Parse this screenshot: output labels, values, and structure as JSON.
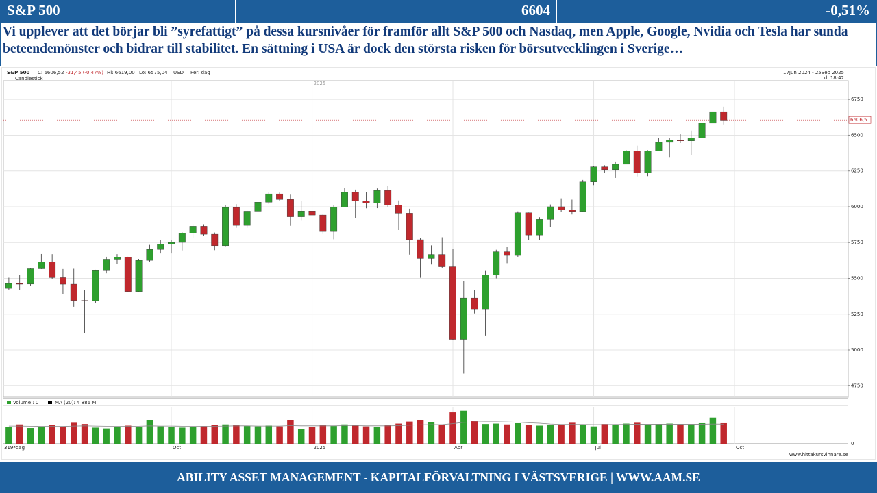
{
  "header": {
    "title": "S&P 500",
    "price": "6604",
    "change": "-0,51%"
  },
  "commentary": "Vi upplever att det börjar bli ”syrefattigt” på dessa kursnivåer för framför allt S&P 500 och Nasdaq, men Apple, Google, Nvidia och Tesla har sunda beteendemönster och bidrar till stabilitet. En sättning i USA är dock den största risken för börsutvecklingen i Sverige…",
  "footer": "ABILITY ASSET MANAGEMENT -  KAPITALFÖRVALTNING I VÄSTSVERIGE   |   WWW.AAM.SE",
  "chart_data": {
    "type": "candlestick",
    "title": "S&P 500",
    "close_label": "C: 6606,52",
    "change_label": "-31,45 (-0,47%)",
    "high_label": "Hi: 6619,00",
    "low_label": "Lo: 6575,04",
    "currency": "USD",
    "period": "Per: dag",
    "chart_style": "Candlestick",
    "date_range": "17Jun 2024 - 25Sep 2025",
    "time": "kl. 18:42",
    "volume_label": "Volume : 0",
    "ma_label": "MA (20): 4 886 M",
    "bars_label": "319*dag",
    "source": "www.hittakursvinnare.se",
    "last_price": {
      "value": 6606.5,
      "label": "6606,5"
    },
    "up_color": "#2ea02e",
    "down_color": "#c0282d",
    "volume_ma_color": "#888888",
    "grid": true,
    "ylim": [
      4670,
      6880
    ],
    "yticks": [
      4750,
      5000,
      5250,
      5500,
      5750,
      6000,
      6250,
      6500,
      6750
    ],
    "volume_ylim": [
      0,
      9000
    ],
    "volume_yticks": [
      0
    ],
    "categories": [
      null,
      null,
      null,
      null,
      null,
      null,
      null,
      null,
      null,
      null,
      null,
      null,
      null,
      null,
      null,
      "Oct",
      null,
      null,
      null,
      null,
      null,
      null,
      null,
      null,
      null,
      null,
      null,
      null,
      "2025",
      null,
      null,
      null,
      null,
      null,
      null,
      null,
      null,
      null,
      null,
      null,
      null,
      "Apr",
      null,
      null,
      null,
      null,
      null,
      null,
      null,
      null,
      null,
      null,
      null,
      null,
      "Jul",
      null,
      null,
      null,
      null,
      null,
      null,
      null,
      null,
      null,
      null,
      null,
      null,
      "Oct",
      null,
      null,
      null,
      null,
      null,
      null,
      null,
      null,
      null,
      null
    ],
    "open": [
      5430,
      5464,
      5460,
      5567,
      5615,
      5505,
      5459,
      5346,
      5344,
      5554,
      5634,
      5648,
      5408,
      5626,
      5702,
      5738,
      5751,
      5815,
      5864,
      5808,
      5728,
      5995,
      5870,
      5969,
      6032,
      6090,
      6051,
      5930,
      5970,
      5942,
      5827,
      5997,
      6101,
      6040,
      6026,
      6114,
      6013,
      5955,
      5770,
      5639,
      5667,
      5581,
      5074,
      5363,
      5282,
      5525,
      5686,
      5660,
      5958,
      5803,
      5912,
      6000,
      5977,
      5967,
      6173,
      6279,
      6259,
      6297,
      6389,
      6238,
      6389,
      6450,
      6467,
      6460,
      6482,
      6584,
      6664,
      null,
      null,
      null,
      null,
      null,
      null,
      null,
      null,
      null,
      null,
      null
    ],
    "high": [
      5505,
      5523,
      5570,
      5670,
      5669,
      5565,
      5567,
      5420,
      5560,
      5651,
      5669,
      5651,
      5636,
      5734,
      5767,
      5768,
      5822,
      5879,
      5878,
      5820,
      6012,
      6018,
      5972,
      6045,
      6100,
      6099,
      6085,
      6041,
      6015,
      5950,
      6010,
      6129,
      6120,
      6101,
      6128,
      6147,
      6044,
      5986,
      5782,
      5730,
      5787,
      5705,
      5481,
      5420,
      5552,
      5700,
      5721,
      5968,
      5960,
      5927,
      6016,
      6059,
      6050,
      6187,
      6285,
      6290,
      6316,
      6395,
      6427,
      6395,
      6481,
      6482,
      6508,
      6532,
      6600,
      6671,
      6699,
      null,
      null,
      null,
      null,
      null,
      null,
      null,
      null,
      null,
      null,
      null
    ],
    "low": [
      5420,
      5420,
      5447,
      5565,
      5497,
      5390,
      5302,
      5119,
      5330,
      5535,
      5600,
      5402,
      5406,
      5613,
      5674,
      5674,
      5695,
      5780,
      5795,
      5697,
      5724,
      5853,
      5853,
      5955,
      6020,
      6040,
      5867,
      5902,
      5900,
      5810,
      5773,
      5995,
      5923,
      5989,
      5990,
      5998,
      5837,
      5666,
      5504,
      5597,
      5574,
      5069,
      4835,
      5255,
      5101,
      5500,
      5606,
      5650,
      5768,
      5767,
      5861,
      5966,
      5946,
      5964,
      6152,
      6235,
      6201,
      6300,
      6212,
      6214,
      6389,
      6343,
      6445,
      6360,
      6450,
      6573,
      6575,
      null,
      null,
      null,
      null,
      null,
      null,
      null,
      null,
      null,
      null,
      null
    ],
    "close": [
      5464,
      5460,
      5567,
      5615,
      5505,
      5459,
      5346,
      5344,
      5554,
      5634,
      5648,
      5408,
      5626,
      5702,
      5738,
      5751,
      5815,
      5864,
      5808,
      5728,
      5995,
      5870,
      5969,
      6032,
      6090,
      6051,
      5930,
      5970,
      5942,
      5827,
      5997,
      6101,
      6040,
      6026,
      6114,
      6013,
      5955,
      5770,
      5639,
      5667,
      5581,
      5074,
      5363,
      5282,
      5525,
      5686,
      5660,
      5958,
      5803,
      5912,
      6000,
      5977,
      5967,
      6173,
      6279,
      6259,
      6297,
      6389,
      6238,
      6389,
      6450,
      6467,
      6460,
      6482,
      6584,
      6664,
      6605,
      null,
      null,
      null,
      null,
      null,
      null,
      null,
      null,
      null,
      null,
      null
    ],
    "volume": [
      4200,
      4800,
      3900,
      4100,
      4600,
      4300,
      5200,
      4900,
      4000,
      3800,
      4100,
      4500,
      4200,
      5900,
      4300,
      4100,
      4000,
      4200,
      4300,
      4600,
      4800,
      4700,
      4400,
      4300,
      4500,
      4300,
      5800,
      3600,
      4200,
      4700,
      4400,
      4800,
      4600,
      4300,
      4200,
      4700,
      5000,
      5500,
      5800,
      5300,
      4700,
      7800,
      8200,
      5600,
      4900,
      5000,
      4800,
      5100,
      4700,
      4500,
      4600,
      4700,
      5200,
      4800,
      4300,
      4900,
      4800,
      5000,
      5200,
      4700,
      4900,
      5000,
      4800,
      4800,
      5100,
      6500,
      5100,
      null,
      null,
      null,
      null,
      null,
      null,
      null,
      null,
      null,
      null,
      null
    ],
    "volume_ma": [
      4400,
      4400,
      4350,
      4300,
      4300,
      4300,
      4400,
      4450,
      4400,
      4350,
      4350,
      4350,
      4350,
      4450,
      4400,
      4400,
      4350,
      4350,
      4350,
      4350,
      4400,
      4450,
      4450,
      4400,
      4400,
      4400,
      4500,
      4450,
      4450,
      4450,
      4450,
      4500,
      4500,
      4450,
      4450,
      4450,
      4500,
      4600,
      4700,
      4750,
      4750,
      5000,
      5300,
      5400,
      5450,
      5450,
      5400,
      5350,
      5200,
      5100,
      4900,
      4800,
      4800,
      4800,
      4750,
      4750,
      4800,
      4800,
      4850,
      4850,
      4850,
      4850,
      4850,
      4850,
      4850,
      4900,
      4886,
      null,
      null,
      null,
      null,
      null,
      null,
      null,
      null,
      null,
      null,
      null
    ]
  }
}
